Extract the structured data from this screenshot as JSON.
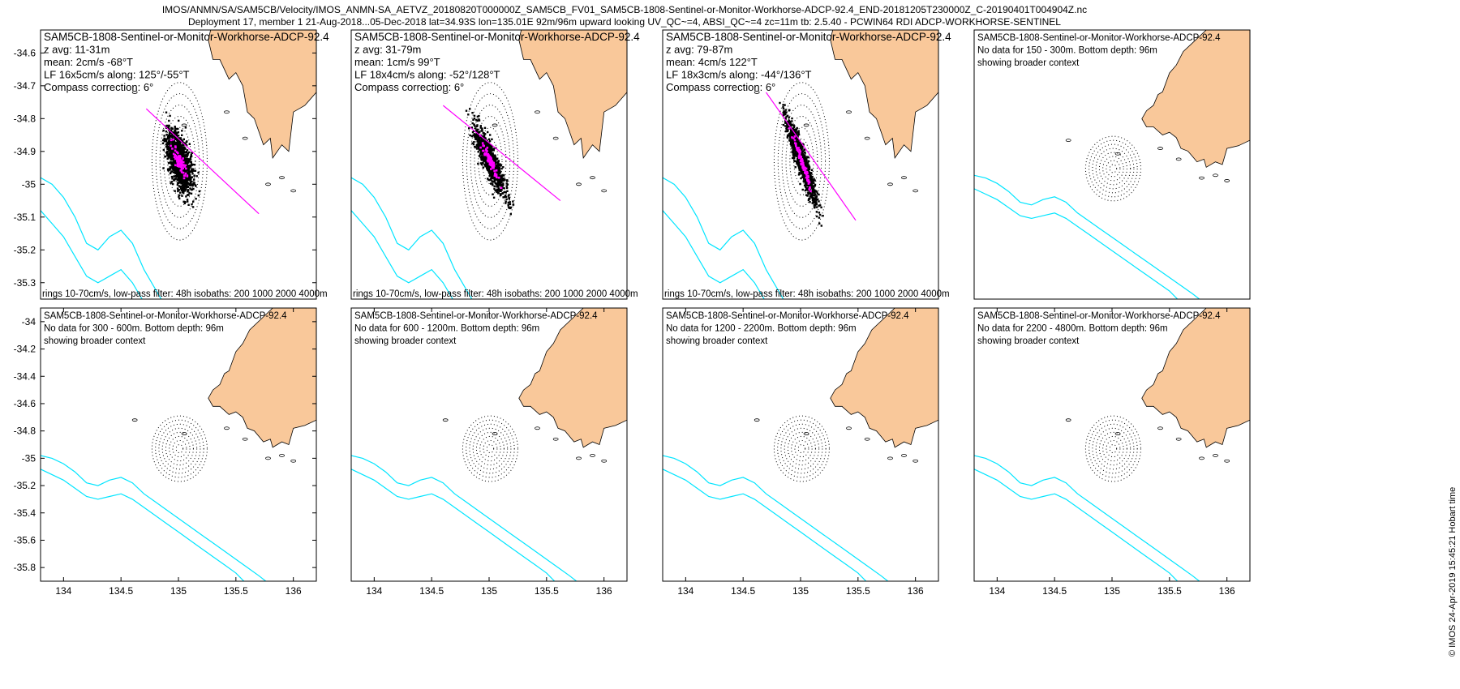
{
  "title_line1": "IMOS/ANMN/SA/SAM5CB/Velocity/IMOS_ANMN-SA_AETVZ_20180820T000000Z_SAM5CB_FV01_SAM5CB-1808-Sentinel-or-Monitor-Workhorse-ADCP-92.4_END-20181205T230000Z_C-20190401T004904Z.nc",
  "title_line2": "Deployment 17, member 1 21-Aug-2018...05-Dec-2018 lat=34.93S lon=135.01E 92m/96m upward looking UV_QC~=4, ABSI_QC~=4 zc=11m tb: 2.5.40 - PCWIN64 RDI ADCP-WORKHORSE-SENTINEL",
  "stamp": "© IMOS 24-Apr-2019 15:45:21 Hobart time",
  "colors": {
    "land": "#f9c89a",
    "isobath": "#00e5ff",
    "scatter": "#000000",
    "lowpass": "#ff00ff",
    "major_axis": "#ff00ff",
    "rings": "#000000"
  },
  "chart_data": [
    {
      "type": "scatter",
      "panel": "top-1",
      "lines": [
        "SAM5CB-1808-Sentinel-or-Monitor-Workhorse-ADCP-92.4",
        "z avg: 11-31m",
        "mean: 2cm/s -68°T",
        "LF 16x5cm/s along: 125°/-55°T",
        "Compass correction: 6°"
      ],
      "footer": "rings 10-70cm/s, low-pass filter: 48h isobaths: 200 1000 2000 4000m",
      "xlim": [
        133.8,
        136.2
      ],
      "ylim": [
        -35.35,
        -34.53
      ],
      "yticks": [
        -34.6,
        -34.7,
        -34.8,
        -34.9,
        -35.0,
        -35.1,
        -35.2,
        -35.3
      ],
      "ytick_labels": [
        "-34.6",
        "-34.7",
        "-34.8",
        "-34.9",
        "-35",
        "-35.1",
        "-35.2",
        "-35.3"
      ],
      "center": [
        135.01,
        -34.93
      ],
      "rings_deg": [
        0.0343,
        0.0686,
        0.1029,
        0.1371,
        0.1714,
        0.2057,
        0.24
      ],
      "cloud": {
        "major": 0.118,
        "minor": 0.062,
        "angle_deg": -35,
        "count": 1400
      },
      "lowpass_spread": {
        "major": 0.07,
        "minor": 0.022,
        "count": 90
      },
      "axis_line": [
        [
          134.72,
          -34.77
        ],
        [
          135.7,
          -35.09
        ]
      ]
    },
    {
      "type": "scatter",
      "panel": "top-2",
      "lines": [
        "SAM5CB-1808-Sentinel-or-Monitor-Workhorse-ADCP-92.4",
        "z avg: 31-79m",
        "mean: 1cm/s 99°T",
        "LF 18x4cm/s along: -52°/128°T",
        "Compass correction: 6°"
      ],
      "footer": "rings 10-70cm/s, low-pass filter: 48h isobaths: 200 1000 2000 4000m",
      "xlim": [
        133.8,
        136.2
      ],
      "ylim": [
        -35.35,
        -34.53
      ],
      "center": [
        135.01,
        -34.93
      ],
      "rings_deg": [
        0.0343,
        0.0686,
        0.1029,
        0.1371,
        0.1714,
        0.2057,
        0.24
      ],
      "cloud": {
        "major": 0.16,
        "minor": 0.04,
        "angle_deg": -36,
        "count": 1100
      },
      "lowpass_spread": {
        "major": 0.1,
        "minor": 0.015,
        "count": 90
      },
      "axis_line": [
        [
          134.6,
          -34.76
        ],
        [
          135.62,
          -35.05
        ]
      ]
    },
    {
      "type": "scatter",
      "panel": "top-3",
      "lines": [
        "SAM5CB-1808-Sentinel-or-Monitor-Workhorse-ADCP-92.4",
        "z avg: 79-87m",
        "mean: 4cm/s 122°T",
        "LF 18x3cm/s along: -44°/136°T",
        "Compass correction: 6°"
      ],
      "footer": "rings 10-70cm/s, low-pass filter: 48h isobaths: 200 1000 2000 4000m",
      "xlim": [
        133.8,
        136.2
      ],
      "ylim": [
        -35.35,
        -34.53
      ],
      "center": [
        135.01,
        -34.93
      ],
      "rings_deg": [
        0.0343,
        0.0686,
        0.1029,
        0.1371,
        0.1714,
        0.2057,
        0.24
      ],
      "cloud": {
        "major": 0.17,
        "minor": 0.035,
        "angle_deg": -45,
        "count": 1100
      },
      "lowpass_spread": {
        "major": 0.12,
        "minor": 0.012,
        "count": 90
      },
      "axis_line": [
        [
          134.7,
          -34.72
        ],
        [
          135.48,
          -35.11
        ]
      ]
    },
    {
      "type": "map",
      "panel": "top-4",
      "lines": [
        "SAM5CB-1808-Sentinel-or-Monitor-Workhorse-ADCP-92.4",
        "No data for 150 - 300m. Bottom depth: 96m",
        "showing broader context"
      ],
      "xlim": [
        133.8,
        136.2
      ],
      "ylim": [
        -35.9,
        -33.9
      ],
      "center": [
        135.01,
        -34.93
      ],
      "rings_deg": [
        0.03,
        0.06,
        0.09,
        0.12,
        0.15,
        0.18,
        0.21,
        0.24
      ]
    },
    {
      "type": "map",
      "panel": "bottom-1",
      "lines": [
        "SAM5CB-1808-Sentinel-or-Monitor-Workhorse-ADCP-92.4",
        "No data for 300 - 600m. Bottom depth: 96m",
        "showing broader context"
      ],
      "xlim": [
        133.8,
        136.2
      ],
      "ylim": [
        -35.9,
        -33.9
      ],
      "yticks": [
        -34.0,
        -34.2,
        -34.4,
        -34.6,
        -34.8,
        -35.0,
        -35.2,
        -35.4,
        -35.6,
        -35.8
      ],
      "ytick_labels": [
        "-34",
        "-34.2",
        "-34.4",
        "-34.6",
        "-34.8",
        "-35",
        "-35.2",
        "-35.4",
        "-35.6",
        "-35.8"
      ],
      "xticks": [
        134.0,
        134.5,
        135.0,
        135.5,
        136.0
      ],
      "xtick_labels": [
        "134",
        "134.5",
        "135",
        "135.5",
        "136"
      ],
      "center": [
        135.01,
        -34.93
      ],
      "rings_deg": [
        0.03,
        0.06,
        0.09,
        0.12,
        0.15,
        0.18,
        0.21,
        0.24
      ]
    },
    {
      "type": "map",
      "panel": "bottom-2",
      "lines": [
        "SAM5CB-1808-Sentinel-or-Monitor-Workhorse-ADCP-92.4",
        "No data for 600 - 1200m. Bottom depth: 96m",
        "showing broader context"
      ],
      "xlim": [
        133.8,
        136.2
      ],
      "ylim": [
        -35.9,
        -33.9
      ],
      "xticks": [
        134.0,
        134.5,
        135.0,
        135.5,
        136.0
      ],
      "xtick_labels": [
        "134",
        "134.5",
        "135",
        "135.5",
        "136"
      ],
      "center": [
        135.01,
        -34.93
      ],
      "rings_deg": [
        0.03,
        0.06,
        0.09,
        0.12,
        0.15,
        0.18,
        0.21,
        0.24
      ]
    },
    {
      "type": "map",
      "panel": "bottom-3",
      "lines": [
        "SAM5CB-1808-Sentinel-or-Monitor-Workhorse-ADCP-92.4",
        "No data for 1200 - 2200m. Bottom depth: 96m",
        "showing broader context"
      ],
      "xlim": [
        133.8,
        136.2
      ],
      "ylim": [
        -35.9,
        -33.9
      ],
      "xticks": [
        134.0,
        134.5,
        135.0,
        135.5,
        136.0
      ],
      "xtick_labels": [
        "134",
        "134.5",
        "135",
        "135.5",
        "136"
      ],
      "center": [
        135.01,
        -34.93
      ],
      "rings_deg": [
        0.03,
        0.06,
        0.09,
        0.12,
        0.15,
        0.18,
        0.21,
        0.24
      ]
    },
    {
      "type": "map",
      "panel": "bottom-4",
      "lines": [
        "SAM5CB-1808-Sentinel-or-Monitor-Workhorse-ADCP-92.4",
        "No data for 2200 - 4800m. Bottom depth: 96m",
        "showing broader context"
      ],
      "xlim": [
        133.8,
        136.2
      ],
      "ylim": [
        -35.9,
        -33.9
      ],
      "xticks": [
        134.0,
        134.5,
        135.0,
        135.5,
        136.0
      ],
      "xtick_labels": [
        "134",
        "134.5",
        "135",
        "135.5",
        "136"
      ],
      "center": [
        135.01,
        -34.93
      ],
      "rings_deg": [
        0.03,
        0.06,
        0.09,
        0.12,
        0.15,
        0.18,
        0.21,
        0.24
      ]
    }
  ]
}
